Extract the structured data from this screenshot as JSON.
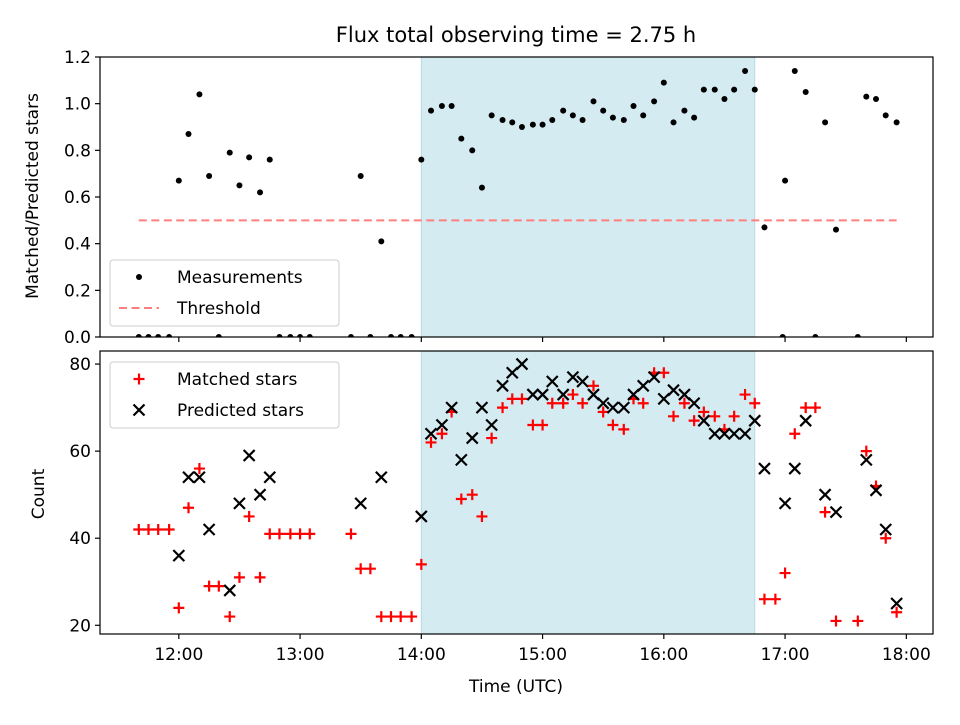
{
  "figure": {
    "title": "Flux total observing time = 2.75 h",
    "x_label": "Time (UTC)",
    "x_ticks": [
      "12:00",
      "13:00",
      "14:00",
      "15:00",
      "16:00",
      "17:00",
      "18:00"
    ]
  },
  "chart_data": [
    {
      "type": "scatter",
      "ylabel": "Matched/Predicted stars",
      "xlabel": "Time (UTC)",
      "x_units": "hours UTC",
      "xlim": [
        11.35,
        18.22
      ],
      "ylim": [
        0,
        1.2
      ],
      "y_ticks": [
        "0.0",
        "0.2",
        "0.4",
        "0.6",
        "0.8",
        "1.0",
        "1.2"
      ],
      "shaded_region": {
        "x_start": 14.0,
        "x_end": 16.75,
        "color": "#d4ebf2"
      },
      "legend": {
        "location": "lower-left",
        "entries": [
          "Measurements",
          "Threshold"
        ]
      },
      "series": [
        {
          "name": "Measurements",
          "marker": "dot",
          "color": "#000000",
          "points": [
            [
              11.67,
              0.0
            ],
            [
              11.75,
              0.0
            ],
            [
              11.83,
              0.0
            ],
            [
              11.92,
              0.0
            ],
            [
              12.0,
              0.67
            ],
            [
              12.08,
              0.87
            ],
            [
              12.17,
              1.04
            ],
            [
              12.25,
              0.69
            ],
            [
              12.33,
              0.0
            ],
            [
              12.42,
              0.79
            ],
            [
              12.5,
              0.65
            ],
            [
              12.58,
              0.77
            ],
            [
              12.67,
              0.62
            ],
            [
              12.75,
              0.76
            ],
            [
              12.83,
              0.0
            ],
            [
              12.92,
              0.0
            ],
            [
              13.0,
              0.0
            ],
            [
              13.08,
              0.0
            ],
            [
              13.42,
              0.0
            ],
            [
              13.5,
              0.69
            ],
            [
              13.58,
              0.0
            ],
            [
              13.67,
              0.41
            ],
            [
              13.75,
              0.0
            ],
            [
              13.83,
              0.0
            ],
            [
              13.92,
              0.0
            ],
            [
              14.0,
              0.76
            ],
            [
              14.08,
              0.97
            ],
            [
              14.17,
              0.99
            ],
            [
              14.25,
              0.99
            ],
            [
              14.33,
              0.85
            ],
            [
              14.42,
              0.8
            ],
            [
              14.5,
              0.64
            ],
            [
              14.58,
              0.95
            ],
            [
              14.67,
              0.93
            ],
            [
              14.75,
              0.92
            ],
            [
              14.83,
              0.9
            ],
            [
              14.92,
              0.91
            ],
            [
              15.0,
              0.91
            ],
            [
              15.08,
              0.93
            ],
            [
              15.17,
              0.97
            ],
            [
              15.25,
              0.95
            ],
            [
              15.33,
              0.93
            ],
            [
              15.42,
              1.01
            ],
            [
              15.5,
              0.97
            ],
            [
              15.58,
              0.94
            ],
            [
              15.67,
              0.93
            ],
            [
              15.75,
              0.99
            ],
            [
              15.83,
              0.95
            ],
            [
              15.92,
              1.01
            ],
            [
              16.0,
              1.09
            ],
            [
              16.08,
              0.92
            ],
            [
              16.17,
              0.97
            ],
            [
              16.25,
              0.94
            ],
            [
              16.33,
              1.06
            ],
            [
              16.42,
              1.06
            ],
            [
              16.5,
              1.02
            ],
            [
              16.58,
              1.06
            ],
            [
              16.67,
              1.14
            ],
            [
              16.75,
              1.06
            ],
            [
              16.83,
              0.47
            ],
            [
              16.98,
              0.0
            ],
            [
              17.0,
              0.67
            ],
            [
              17.08,
              1.14
            ],
            [
              17.17,
              1.05
            ],
            [
              17.25,
              0.0
            ],
            [
              17.33,
              0.92
            ],
            [
              17.42,
              0.46
            ],
            [
              17.6,
              0.0
            ],
            [
              17.67,
              1.03
            ],
            [
              17.75,
              1.02
            ],
            [
              17.83,
              0.95
            ],
            [
              17.92,
              0.92
            ]
          ]
        },
        {
          "name": "Threshold",
          "style": "dashed",
          "color": "#ff7f7f",
          "x": [
            11.67,
            17.92
          ],
          "y": [
            0.5,
            0.5
          ]
        }
      ]
    },
    {
      "type": "scatter",
      "ylabel": "Count",
      "xlabel": "Time (UTC)",
      "x_units": "hours UTC",
      "xlim": [
        11.35,
        18.22
      ],
      "ylim": [
        18,
        83
      ],
      "y_ticks": [
        "20",
        "40",
        "60",
        "80"
      ],
      "shaded_region": {
        "x_start": 14.0,
        "x_end": 16.75,
        "color": "#d4ebf2"
      },
      "legend": {
        "location": "upper-left",
        "entries": [
          "Matched stars",
          "Predicted stars"
        ]
      },
      "series": [
        {
          "name": "Matched stars",
          "marker": "plus",
          "color": "#ff0000",
          "points": [
            [
              11.67,
              42
            ],
            [
              11.75,
              42
            ],
            [
              11.83,
              42
            ],
            [
              11.92,
              42
            ],
            [
              12.0,
              24
            ],
            [
              12.08,
              47
            ],
            [
              12.17,
              56
            ],
            [
              12.25,
              29
            ],
            [
              12.33,
              29
            ],
            [
              12.42,
              22
            ],
            [
              12.5,
              31
            ],
            [
              12.58,
              45
            ],
            [
              12.67,
              31
            ],
            [
              12.75,
              41
            ],
            [
              12.83,
              41
            ],
            [
              12.92,
              41
            ],
            [
              13.0,
              41
            ],
            [
              13.08,
              41
            ],
            [
              13.42,
              41
            ],
            [
              13.5,
              33
            ],
            [
              13.58,
              33
            ],
            [
              13.67,
              22
            ],
            [
              13.75,
              22
            ],
            [
              13.83,
              22
            ],
            [
              13.92,
              22
            ],
            [
              14.0,
              34
            ],
            [
              14.08,
              62
            ],
            [
              14.17,
              64
            ],
            [
              14.25,
              69
            ],
            [
              14.33,
              49
            ],
            [
              14.42,
              50
            ],
            [
              14.5,
              45
            ],
            [
              14.58,
              63
            ],
            [
              14.67,
              70
            ],
            [
              14.75,
              72
            ],
            [
              14.83,
              72
            ],
            [
              14.92,
              66
            ],
            [
              15.0,
              66
            ],
            [
              15.08,
              71
            ],
            [
              15.17,
              71
            ],
            [
              15.25,
              73
            ],
            [
              15.33,
              71
            ],
            [
              15.42,
              75
            ],
            [
              15.5,
              69
            ],
            [
              15.58,
              66
            ],
            [
              15.67,
              65
            ],
            [
              15.75,
              72
            ],
            [
              15.83,
              71
            ],
            [
              15.92,
              78
            ],
            [
              16.0,
              78
            ],
            [
              16.08,
              68
            ],
            [
              16.17,
              71
            ],
            [
              16.25,
              67
            ],
            [
              16.33,
              69
            ],
            [
              16.42,
              68
            ],
            [
              16.5,
              65
            ],
            [
              16.58,
              68
            ],
            [
              16.67,
              73
            ],
            [
              16.75,
              71
            ],
            [
              16.83,
              26
            ],
            [
              16.92,
              26
            ],
            [
              17.0,
              32
            ],
            [
              17.08,
              64
            ],
            [
              17.17,
              70
            ],
            [
              17.25,
              70
            ],
            [
              17.33,
              46
            ],
            [
              17.42,
              21
            ],
            [
              17.6,
              21
            ],
            [
              17.67,
              60
            ],
            [
              17.75,
              52
            ],
            [
              17.83,
              40
            ],
            [
              17.92,
              23
            ]
          ]
        },
        {
          "name": "Predicted stars",
          "marker": "x",
          "color": "#000000",
          "points": [
            [
              12.0,
              36
            ],
            [
              12.08,
              54
            ],
            [
              12.17,
              54
            ],
            [
              12.25,
              42
            ],
            [
              12.42,
              28
            ],
            [
              12.5,
              48
            ],
            [
              12.58,
              59
            ],
            [
              12.67,
              50
            ],
            [
              12.75,
              54
            ],
            [
              13.5,
              48
            ],
            [
              13.67,
              54
            ],
            [
              14.0,
              45
            ],
            [
              14.08,
              64
            ],
            [
              14.17,
              66
            ],
            [
              14.25,
              70
            ],
            [
              14.33,
              58
            ],
            [
              14.42,
              63
            ],
            [
              14.5,
              70
            ],
            [
              14.58,
              66
            ],
            [
              14.67,
              75
            ],
            [
              14.75,
              78
            ],
            [
              14.83,
              80
            ],
            [
              14.92,
              73
            ],
            [
              15.0,
              73
            ],
            [
              15.08,
              76
            ],
            [
              15.17,
              73
            ],
            [
              15.25,
              77
            ],
            [
              15.33,
              76
            ],
            [
              15.42,
              73
            ],
            [
              15.5,
              71
            ],
            [
              15.58,
              70
            ],
            [
              15.67,
              70
            ],
            [
              15.75,
              73
            ],
            [
              15.83,
              75
            ],
            [
              15.92,
              77
            ],
            [
              16.0,
              72
            ],
            [
              16.08,
              74
            ],
            [
              16.17,
              73
            ],
            [
              16.25,
              71
            ],
            [
              16.33,
              67
            ],
            [
              16.42,
              64
            ],
            [
              16.5,
              64
            ],
            [
              16.58,
              64
            ],
            [
              16.67,
              64
            ],
            [
              16.75,
              67
            ],
            [
              16.83,
              56
            ],
            [
              17.0,
              48
            ],
            [
              17.08,
              56
            ],
            [
              17.17,
              67
            ],
            [
              17.33,
              50
            ],
            [
              17.42,
              46
            ],
            [
              17.67,
              58
            ],
            [
              17.75,
              51
            ],
            [
              17.83,
              42
            ],
            [
              17.92,
              25
            ]
          ]
        }
      ]
    }
  ]
}
